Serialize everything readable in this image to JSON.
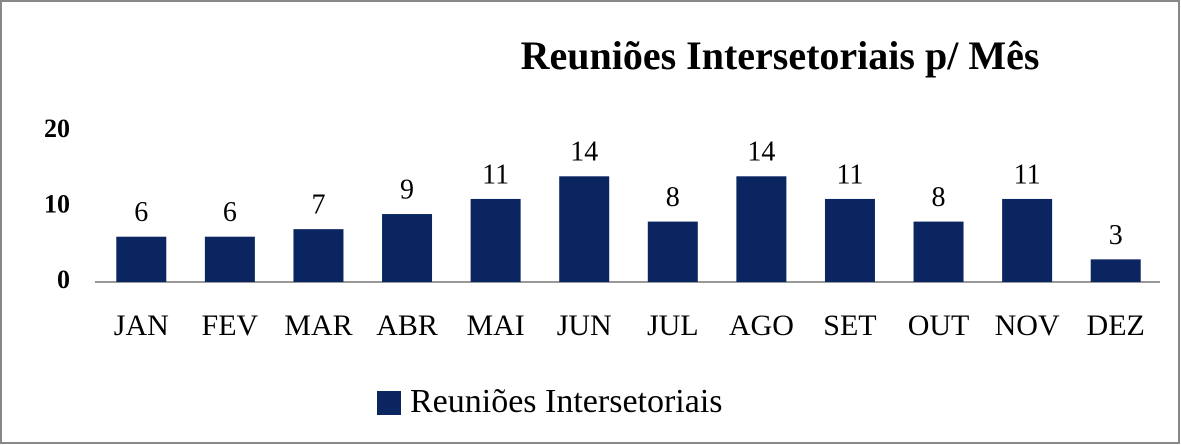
{
  "chart_data": {
    "type": "bar",
    "title": "Reuniões Intersetoriais p/ Mês",
    "categories": [
      "JAN",
      "FEV",
      "MAR",
      "ABR",
      "MAI",
      "JUN",
      "JUL",
      "AGO",
      "SET",
      "OUT",
      "NOV",
      "DEZ"
    ],
    "series": [
      {
        "name": "Reuniões Intersetoriais",
        "color": "#0b2561",
        "values": [
          6,
          6,
          7,
          9,
          11,
          14,
          8,
          14,
          11,
          8,
          11,
          3
        ]
      }
    ],
    "ylim": [
      0,
      20
    ],
    "yticks": [
      0,
      10,
      20
    ],
    "grid": false,
    "legend": "bottom"
  }
}
